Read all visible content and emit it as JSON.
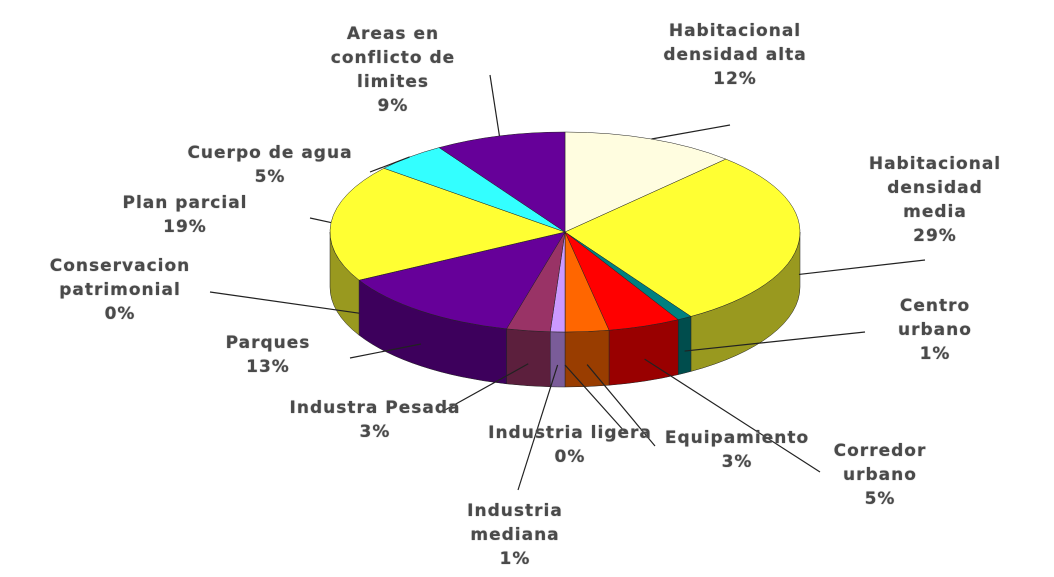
{
  "chart_data": {
    "type": "pie3d",
    "categories": [
      "Habitacional\ndensidad alta",
      "Habitacional\ndensidad media",
      "Centro urbano",
      "Corredor\nurbano",
      "Equipamiento",
      "Industria ligera",
      "Industria\nmediana",
      "Industra Pesada",
      "Parques",
      "Conservacion\npatrimonial",
      "Plan parcial",
      "Cuerpo de agua",
      "Areas en\nconflicto de\nlimites"
    ],
    "values": [
      12,
      29,
      1,
      5,
      3,
      0,
      1,
      3,
      13,
      0,
      19,
      5,
      9
    ],
    "value_labels": [
      "12%",
      "29%",
      "1%",
      "5%",
      "3%",
      "0%",
      "1%",
      "3%",
      "13%",
      "0%",
      "19%",
      "5%",
      "9%"
    ],
    "colors": [
      "#fffde0",
      "#ffff33",
      "#008080",
      "#ff0000",
      "#ff6600",
      "#ffffff",
      "#cc99ff",
      "#993366",
      "#660099",
      "#ffcc00",
      "#ffff33",
      "#33ffff",
      "#660099"
    ]
  }
}
